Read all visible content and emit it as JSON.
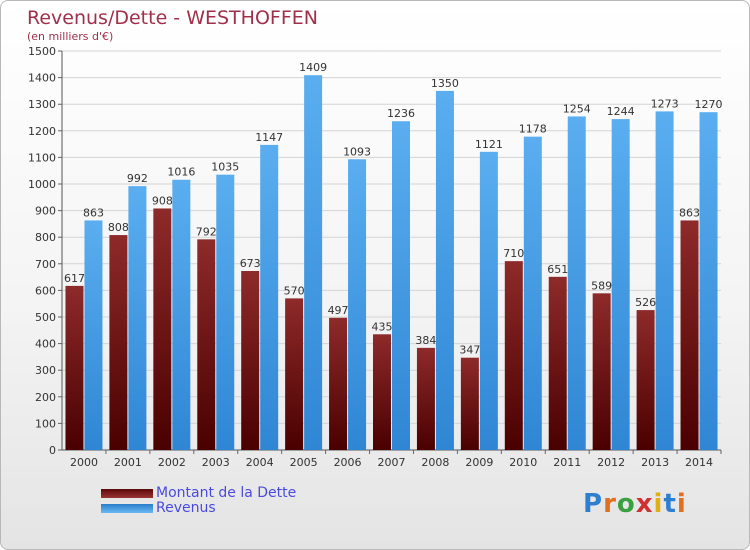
{
  "header": {
    "title": "Revenus/Dette - WESTHOFFEN",
    "subtitle": "(en milliers d'€)"
  },
  "chart_data": {
    "type": "bar",
    "categories": [
      "2000",
      "2001",
      "2002",
      "2003",
      "2004",
      "2005",
      "2006",
      "2007",
      "2008",
      "2009",
      "2010",
      "2011",
      "2012",
      "2013",
      "2014"
    ],
    "series": [
      {
        "name": "Montant de la Dette",
        "color": "#7a1414",
        "values": [
          617,
          808,
          908,
          792,
          673,
          570,
          497,
          435,
          384,
          347,
          710,
          651,
          589,
          526,
          863
        ]
      },
      {
        "name": "Revenus",
        "color": "#4a9ee6",
        "values": [
          863,
          992,
          1016,
          1035,
          1147,
          1409,
          1093,
          1236,
          1350,
          1121,
          1178,
          1254,
          1244,
          1273,
          1270
        ]
      }
    ],
    "ylim": [
      0,
      1500
    ],
    "yticks": [
      0,
      100,
      200,
      300,
      400,
      500,
      600,
      700,
      800,
      900,
      1000,
      1100,
      1200,
      1300,
      1400,
      1500
    ],
    "grid": true,
    "legend_position": "bottom-left"
  },
  "legend": {
    "items": [
      {
        "label": "Montant de la Dette",
        "color": "#7a1414"
      },
      {
        "label": "Revenus",
        "color": "#4a9ee6"
      }
    ]
  },
  "logo": {
    "text": "Proxiti"
  }
}
